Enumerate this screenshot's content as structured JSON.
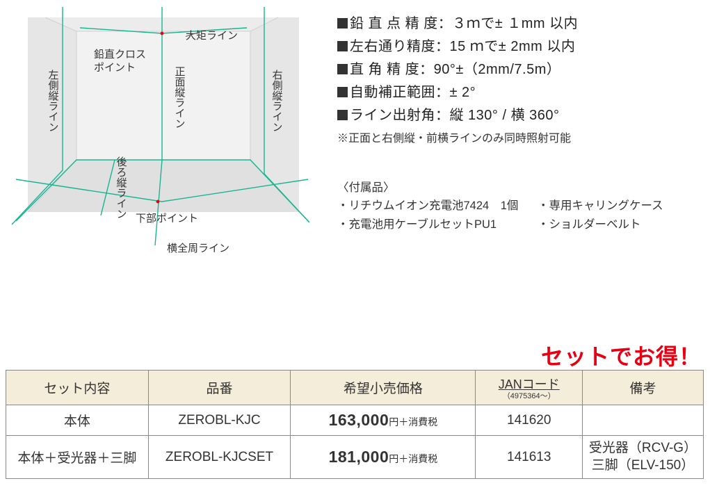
{
  "diagram": {
    "background_fill": "#e9e9e9",
    "line_color": "#17b58f",
    "line_width": 1.4,
    "dot_color": "#e60012",
    "labels": {
      "ogane": "大矩ライン",
      "cross": "鉛直クロス\nポイント",
      "front_v": "正面縦ライン",
      "left_v": "左側縦ライン",
      "right_v": "右側縦ライン",
      "back_v": "後ろ縦ライン",
      "bottom_pt": "下部ポイント",
      "horiz": "横全周ライン"
    }
  },
  "specs": [
    {
      "label": "鉛 直 点 精 度",
      "value": "３ｍで± １mm 以内"
    },
    {
      "label": "左右通り精度",
      "value": "15 ｍで± 2mm 以内"
    },
    {
      "label": "直 角 精 度",
      "value": "90°±（2mm/7.5m）"
    },
    {
      "label": "自動補正範囲",
      "value": "± 2°"
    },
    {
      "label": "ライン出射角",
      "value": "縦 130° / 横 360°"
    }
  ],
  "spec_note": "※正面と右側縦・前横ラインのみ同時照射可能",
  "accessories": {
    "heading": "〈付属品〉",
    "items": [
      "・リチウムイオン充電池7424　1個",
      "・専用キャリングケース",
      "・充電池用ケーブルセットPU1",
      "・ショルダーベルト"
    ]
  },
  "promo_text": "セットでお得！",
  "promo_color": "#e60012",
  "table": {
    "header_bg": "#f3edd9",
    "border_color": "#888888",
    "columns": [
      {
        "key": "set",
        "label": "セット内容"
      },
      {
        "key": "model",
        "label": "品番"
      },
      {
        "key": "price",
        "label": "希望小売価格"
      },
      {
        "key": "jan",
        "label_main": "JANコード",
        "label_sub": "（4975364～）"
      },
      {
        "key": "notes",
        "label": "備考"
      }
    ],
    "rows": [
      {
        "set": "本体",
        "model": "ZEROBL-KJC",
        "price_main": "163,000",
        "price_unit": "円＋消費税",
        "jan": "141620",
        "notes": ""
      },
      {
        "set": "本体＋受光器＋三脚",
        "model": "ZEROBL-KJCSET",
        "price_main": "181,000",
        "price_unit": "円＋消費税",
        "jan": "141613",
        "notes": "受光器（RCV-G）\n三脚（ELV-150）"
      }
    ]
  }
}
